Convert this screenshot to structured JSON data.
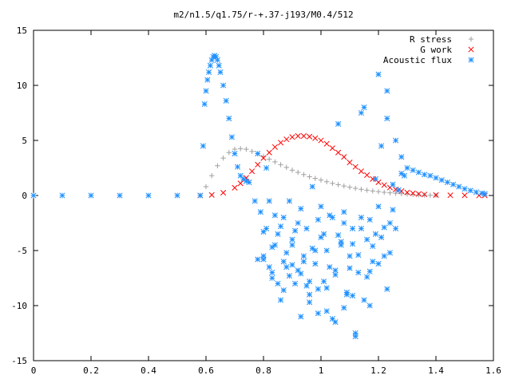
{
  "chart_data": {
    "type": "scatter",
    "title": "m2/n1.5/q1.75/r-+.37-j193/M0.4/512",
    "xlabel": "",
    "ylabel": "",
    "xlim": [
      0,
      1.6
    ],
    "ylim": [
      -15,
      15
    ],
    "x_ticks": [
      "0",
      "0.2",
      "0.4",
      "0.6",
      "0.8",
      "1",
      "1.2",
      "1.4",
      "1.6"
    ],
    "y_ticks": [
      "15",
      "10",
      "5",
      "0",
      "-5",
      "-10",
      "-15"
    ],
    "grid": false,
    "legend_position": "top-right",
    "series": [
      {
        "name": "R stress",
        "color": "#a0a0a0",
        "marker": "plus",
        "x": [
          0.0,
          0.1,
          0.2,
          0.3,
          0.4,
          0.5,
          0.58,
          0.6,
          0.62,
          0.64,
          0.66,
          0.68,
          0.7,
          0.72,
          0.74,
          0.76,
          0.78,
          0.8,
          0.82,
          0.84,
          0.86,
          0.88,
          0.9,
          0.92,
          0.94,
          0.96,
          0.98,
          1.0,
          1.02,
          1.04,
          1.06,
          1.08,
          1.1,
          1.12,
          1.14,
          1.16,
          1.18,
          1.2,
          1.22,
          1.24,
          1.26,
          1.28,
          1.3,
          1.32,
          1.34,
          1.36,
          1.38,
          1.4
        ],
        "y": [
          0,
          0,
          0,
          0,
          0,
          0,
          0,
          0.8,
          1.8,
          2.7,
          3.4,
          3.9,
          4.2,
          4.25,
          4.2,
          4.0,
          3.8,
          3.55,
          3.3,
          3.05,
          2.8,
          2.55,
          2.3,
          2.1,
          1.9,
          1.7,
          1.55,
          1.4,
          1.25,
          1.1,
          0.98,
          0.86,
          0.75,
          0.65,
          0.56,
          0.48,
          0.41,
          0.35,
          0.29,
          0.24,
          0.2,
          0.16,
          0.12,
          0.09,
          0.06,
          0.04,
          0.02,
          0.01
        ]
      },
      {
        "name": "G work",
        "color": "#ff0000",
        "marker": "cross",
        "x": [
          0.58,
          0.62,
          0.66,
          0.7,
          0.72,
          0.74,
          0.76,
          0.78,
          0.8,
          0.82,
          0.84,
          0.86,
          0.88,
          0.9,
          0.92,
          0.94,
          0.96,
          0.98,
          1.0,
          1.02,
          1.04,
          1.06,
          1.08,
          1.1,
          1.12,
          1.14,
          1.16,
          1.18,
          1.2,
          1.22,
          1.24,
          1.26,
          1.28,
          1.3,
          1.32,
          1.34,
          1.36,
          1.4,
          1.45,
          1.5,
          1.55,
          1.57
        ],
        "y": [
          0,
          0.05,
          0.25,
          0.7,
          1.1,
          1.6,
          2.2,
          2.8,
          3.4,
          3.9,
          4.4,
          4.8,
          5.1,
          5.3,
          5.4,
          5.4,
          5.35,
          5.2,
          5.0,
          4.7,
          4.3,
          3.9,
          3.5,
          3.0,
          2.6,
          2.2,
          1.85,
          1.5,
          1.2,
          0.95,
          0.72,
          0.55,
          0.4,
          0.28,
          0.2,
          0.14,
          0.09,
          0.04,
          0.02,
          0.01,
          0,
          0
        ]
      },
      {
        "name": "Acoustic flux",
        "color": "#1e90ff",
        "marker": "star",
        "x": [
          0.0,
          0.1,
          0.2,
          0.3,
          0.4,
          0.5,
          0.58,
          0.59,
          0.595,
          0.6,
          0.605,
          0.61,
          0.615,
          0.62,
          0.625,
          0.63,
          0.635,
          0.64,
          0.645,
          0.65,
          0.66,
          0.67,
          0.68,
          0.69,
          0.7,
          0.71,
          0.72,
          0.73,
          0.74,
          0.75,
          0.77,
          0.78,
          0.79,
          0.8,
          0.81,
          0.82,
          0.83,
          0.84,
          0.85,
          0.86,
          0.87,
          0.88,
          0.89,
          0.9,
          0.91,
          0.92,
          0.93,
          0.94,
          0.95,
          0.96,
          0.97,
          0.98,
          0.99,
          1.0,
          1.01,
          1.02,
          1.03,
          1.04,
          1.05,
          1.06,
          1.07,
          1.08,
          1.09,
          1.1,
          1.11,
          1.12,
          1.13,
          1.14,
          1.15,
          1.16,
          1.17,
          1.18,
          1.19,
          1.2,
          1.21,
          1.22,
          1.23,
          1.24,
          1.25,
          1.26,
          1.27,
          1.28,
          1.29,
          1.3,
          1.32,
          1.34,
          1.36,
          1.38,
          1.4,
          1.42,
          1.44,
          1.46,
          1.48,
          1.5,
          1.52,
          1.54,
          1.56,
          1.57,
          0.78,
          0.8,
          0.81,
          0.82,
          0.83,
          0.84,
          0.85,
          0.86,
          0.87,
          0.88,
          0.89,
          0.9,
          0.91,
          0.92,
          0.93,
          0.94,
          0.95,
          0.96,
          0.97,
          0.98,
          0.99,
          1.0,
          1.01,
          1.02,
          1.03,
          1.04,
          1.05,
          1.06,
          1.07,
          1.08,
          1.09,
          1.1,
          1.11,
          1.12,
          1.13,
          1.14,
          1.15,
          1.16,
          1.17,
          1.18,
          1.19,
          1.2,
          1.21,
          1.22,
          1.23,
          1.24,
          1.25,
          0.8,
          0.83,
          0.87,
          0.9,
          0.93,
          0.96,
          0.99,
          1.02,
          1.05,
          1.08,
          1.11,
          1.14,
          1.17,
          1.2,
          1.23,
          1.26,
          1.28
        ],
        "y": [
          0,
          0,
          0,
          0,
          0,
          0,
          0,
          4.5,
          8.3,
          9.5,
          10.5,
          11.2,
          11.8,
          12.3,
          12.6,
          12.7,
          12.6,
          12.3,
          11.8,
          11.2,
          10.0,
          8.6,
          7.0,
          5.3,
          3.8,
          2.6,
          1.8,
          1.5,
          1.3,
          1.2,
          -0.5,
          3.8,
          -1.5,
          -5.8,
          2.5,
          -0.5,
          -7.0,
          -1.8,
          -3.5,
          -9.5,
          -2.0,
          -6.5,
          -0.5,
          -4.5,
          -8.0,
          -2.5,
          -11.0,
          -6.0,
          -3.0,
          -7.8,
          0.8,
          -5.0,
          -8.5,
          -1.0,
          -3.5,
          -10.5,
          -6.5,
          -2.0,
          -7.2,
          6.5,
          -4.5,
          -1.5,
          -9.0,
          -5.5,
          -3.0,
          -12.5,
          -7.0,
          -2.0,
          8.0,
          -4.0,
          -10.0,
          -6.0,
          -3.5,
          -1.0,
          4.5,
          -5.5,
          -8.5,
          -2.5,
          1.0,
          -3.0,
          0.5,
          2.0,
          1.8,
          2.5,
          2.3,
          2.1,
          1.9,
          1.8,
          1.6,
          1.4,
          1.2,
          1.0,
          0.8,
          0.6,
          0.45,
          0.3,
          0.2,
          0.15,
          -5.8,
          -5.5,
          -3.0,
          -6.5,
          -7.5,
          -4.5,
          -8.0,
          -2.8,
          -6.0,
          -5.2,
          -7.3,
          -4.0,
          -3.2,
          -6.8,
          -1.2,
          -5.5,
          -8.2,
          -9.0,
          -4.8,
          -6.2,
          -2.2,
          -3.8,
          -7.8,
          -5.0,
          -1.8,
          -11.2,
          -6.8,
          -3.6,
          -4.2,
          -2.5,
          -8.8,
          -6.6,
          -4.4,
          -12.8,
          -5.4,
          -3.0,
          -9.5,
          -7.4,
          -2.2,
          -4.6,
          1.5,
          -6.2,
          -3.8,
          -2.9,
          7.0,
          -5.2,
          -1.3,
          -3.3,
          -4.7,
          -8.6,
          -6.3,
          -7.1,
          -9.7,
          -10.7,
          -8.4,
          -11.5,
          -10.2,
          -9.1,
          7.5,
          -6.9,
          11.0,
          9.5,
          5.0,
          3.5
        ]
      }
    ]
  }
}
